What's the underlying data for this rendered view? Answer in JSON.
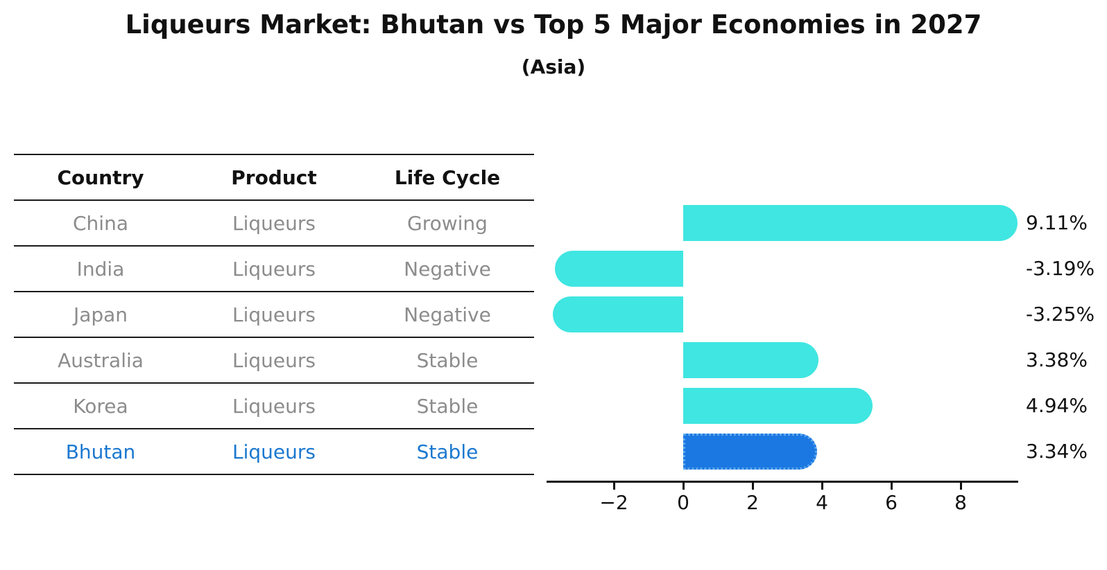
{
  "title": "Liqueurs Market: Bhutan vs Top 5 Major Economies in 2027",
  "subtitle": "(Asia)",
  "table": {
    "headers": [
      "Country",
      "Product",
      "Life Cycle"
    ],
    "rows": [
      {
        "country": "China",
        "product": "Liqueurs",
        "life_cycle": "Growing",
        "highlight": false
      },
      {
        "country": "India",
        "product": "Liqueurs",
        "life_cycle": "Negative",
        "highlight": false
      },
      {
        "country": "Japan",
        "product": "Liqueurs",
        "life_cycle": "Negative",
        "highlight": false
      },
      {
        "country": "Australia",
        "product": "Liqueurs",
        "life_cycle": "Stable",
        "highlight": false
      },
      {
        "country": "Korea",
        "product": "Liqueurs",
        "life_cycle": "Stable",
        "highlight": false
      },
      {
        "country": "Bhutan",
        "product": "Liqueurs",
        "life_cycle": "Stable",
        "highlight": true
      }
    ]
  },
  "chart_data": {
    "type": "bar",
    "orientation": "horizontal",
    "categories": [
      "China",
      "India",
      "Japan",
      "Australia",
      "Korea",
      "Bhutan"
    ],
    "values": [
      9.11,
      -3.19,
      -3.25,
      3.38,
      4.94,
      3.34
    ],
    "value_labels": [
      "9.11%",
      "-3.19%",
      "-3.25%",
      "3.38%",
      "4.94%",
      "3.34%"
    ],
    "x_ticks": [
      -2,
      0,
      2,
      4,
      6,
      8
    ],
    "x_tick_labels": [
      "−2",
      "0",
      "2",
      "4",
      "6",
      "8"
    ],
    "xlim": [
      -3.95,
      9.65
    ],
    "grid": false,
    "legend": false,
    "highlight_index": 5,
    "bar_color": "#40E6E1",
    "highlight_bar_color": "#1B78E2",
    "highlight_text_color": "#1b78d0",
    "axis_color": "#111111",
    "label_color": "#111111"
  }
}
